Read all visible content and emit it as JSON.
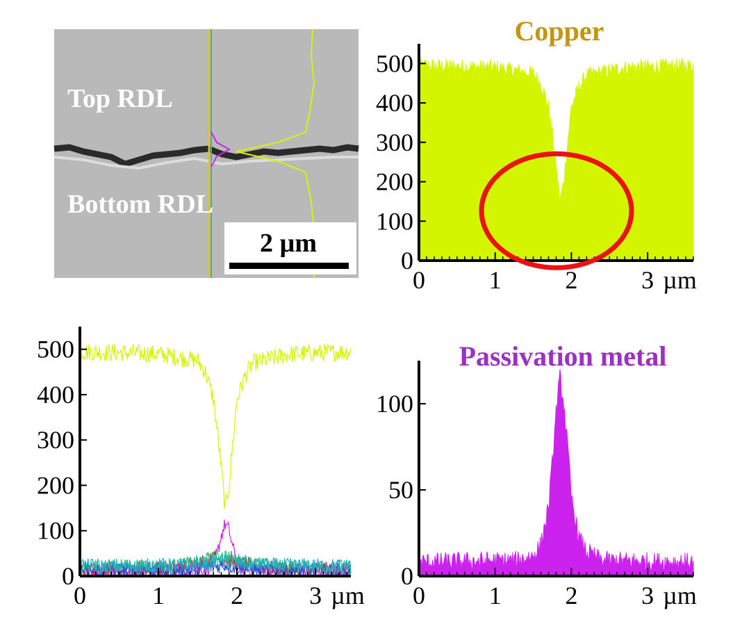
{
  "sem": {
    "top_label": "Top RDL",
    "bottom_label": "Bottom RDL",
    "scale_bar_label": "2 µm"
  },
  "colors": {
    "copper": "#d4f500",
    "copper_title": "#c4960f",
    "passivation": "#cc22ee",
    "passivation_title": "#9b2fc6",
    "highlight_circle": "#ee1111",
    "trace_red": "#d42020",
    "trace_green": "#20c080",
    "trace_blue": "#3050e0",
    "trace_teal": "#20b0c0",
    "sem_background": "#b8b8b8"
  },
  "chart_data": [
    {
      "id": "copper",
      "type": "area",
      "title": "Copper",
      "x_unit": "µm",
      "xlim": [
        0,
        3.6
      ],
      "ylim": [
        0,
        550
      ],
      "x_ticks": [
        0,
        1,
        2,
        3
      ],
      "y_ticks": [
        0,
        100,
        200,
        300,
        400,
        500
      ],
      "series": [
        {
          "name": "Copper",
          "color": "#d4f500",
          "x": [
            0,
            1.0,
            1.5,
            1.6,
            1.7,
            1.75,
            1.8,
            1.85,
            1.9,
            1.95,
            2.0,
            2.1,
            2.2,
            2.7,
            3.6
          ],
          "y": [
            495,
            490,
            475,
            450,
            390,
            320,
            240,
            150,
            200,
            300,
            390,
            440,
            470,
            490,
            495
          ]
        }
      ],
      "annotation": {
        "type": "ellipse",
        "center_x": 1.85,
        "center_y": 130
      }
    },
    {
      "id": "overlay",
      "type": "line",
      "title": "",
      "x_unit": "µm",
      "xlim": [
        0,
        3.45
      ],
      "ylim": [
        0,
        550
      ],
      "x_ticks": [
        0,
        1,
        2,
        3
      ],
      "y_ticks": [
        0,
        100,
        200,
        300,
        400,
        500
      ],
      "series": [
        {
          "name": "",
          "color": "#d4f500",
          "x": [
            0,
            1.0,
            1.5,
            1.6,
            1.7,
            1.75,
            1.8,
            1.85,
            1.9,
            1.95,
            2.0,
            2.1,
            2.2,
            2.7,
            3.45
          ],
          "y": [
            495,
            490,
            475,
            450,
            390,
            320,
            240,
            150,
            200,
            300,
            390,
            440,
            470,
            490,
            495
          ]
        },
        {
          "name": "",
          "color": "#cc22ee",
          "x": [
            0,
            1.5,
            1.65,
            1.75,
            1.8,
            1.85,
            1.9,
            1.95,
            2.0,
            2.1,
            2.3,
            3.45
          ],
          "y": [
            10,
            12,
            20,
            50,
            90,
            115,
            100,
            60,
            30,
            15,
            10,
            10
          ]
        },
        {
          "name": "",
          "color": "#d42020",
          "x": [
            0,
            1.2,
            1.5,
            1.7,
            1.8,
            1.9,
            2.0,
            2.3,
            2.6,
            3.45
          ],
          "y": [
            15,
            18,
            28,
            38,
            40,
            35,
            28,
            20,
            16,
            15
          ]
        },
        {
          "name": "",
          "color": "#20c080",
          "x": [
            0,
            1.2,
            1.5,
            1.7,
            1.85,
            2.0,
            2.3,
            2.6,
            3.45
          ],
          "y": [
            20,
            22,
            30,
            40,
            45,
            35,
            25,
            20,
            20
          ]
        },
        {
          "name": "",
          "color": "#3050e0",
          "x": [
            0,
            1.4,
            1.7,
            1.85,
            2.0,
            2.3,
            3.45
          ],
          "y": [
            12,
            14,
            20,
            25,
            18,
            13,
            12
          ]
        },
        {
          "name": "",
          "color": "#20b0c0",
          "x": [
            0,
            1.4,
            1.7,
            1.85,
            2.0,
            2.4,
            3.45
          ],
          "y": [
            22,
            24,
            30,
            32,
            28,
            24,
            22
          ]
        }
      ]
    },
    {
      "id": "passivation",
      "type": "area",
      "title": "Passivation metal",
      "x_unit": "µm",
      "xlim": [
        0,
        3.6
      ],
      "ylim": [
        0,
        125
      ],
      "x_ticks": [
        0,
        1,
        2,
        3
      ],
      "y_ticks": [
        0,
        50,
        100
      ],
      "series": [
        {
          "name": "Passivation metal",
          "color": "#cc22ee",
          "x": [
            0,
            1.3,
            1.5,
            1.6,
            1.7,
            1.75,
            1.8,
            1.85,
            1.9,
            1.95,
            2.0,
            2.1,
            2.2,
            2.4,
            3.6
          ],
          "y": [
            8,
            9,
            12,
            18,
            40,
            65,
            95,
            115,
            100,
            75,
            45,
            22,
            14,
            9,
            8
          ]
        }
      ]
    }
  ]
}
